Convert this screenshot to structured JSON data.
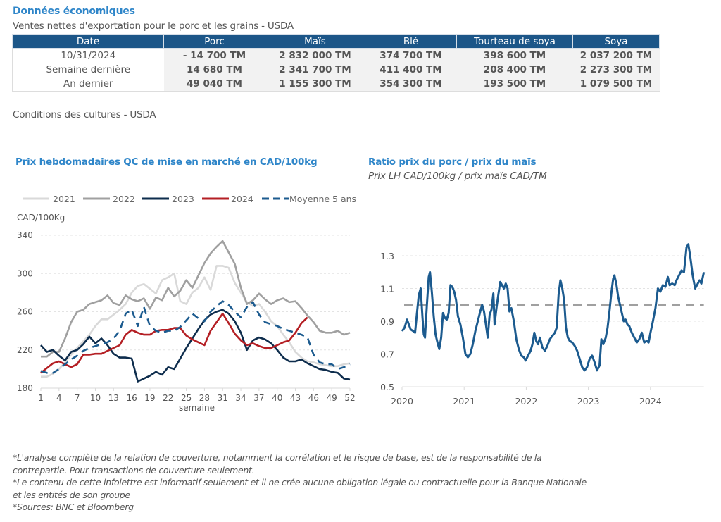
{
  "header": {
    "title": "Données économiques",
    "subtitle": "Ventes nettes d'exportation pour le porc et les grains - USDA"
  },
  "exports_table": {
    "columns": [
      "Date",
      "Porc",
      "Maïs",
      "Blé",
      "Tourteau de soya",
      "Soya"
    ],
    "rows": [
      [
        "10/31/2024",
        "- 14 700 TM",
        "2 832 000 TM",
        "374 700 TM",
        "398 600 TM",
        "2 037 200 TM"
      ],
      [
        "Semaine dernière",
        "14 680 TM",
        "2 341 700 TM",
        "411 400 TM",
        "208 400 TM",
        "2 273 300 TM"
      ],
      [
        "An dernier",
        "49 040 TM",
        "1 155 300 TM",
        "354 300 TM",
        "193 500 TM",
        "1 079 500 TM"
      ]
    ]
  },
  "crop_conditions": {
    "label": "Conditions des cultures - USDA"
  },
  "colors": {
    "title_blue": "#2f86c9",
    "header_navy": "#1c5688",
    "y2021": "#d9d9d9",
    "y2022": "#a0a0a0",
    "y2023": "#0e2d4d",
    "y2024": "#b41f24",
    "avg5": "#1c5b8f",
    "ratio_line": "#1c5b8f",
    "ratio_ref": "#a0a0a0"
  },
  "chart_data": [
    {
      "type": "line",
      "title": "Prix hebdomadaires QC de mise en marché en CAD/100kg",
      "ylabel": "CAD/100Kg",
      "xlabel": "semaine",
      "ylim": [
        180,
        340
      ],
      "yticks": [
        180,
        220,
        260,
        300,
        340
      ],
      "xlim": [
        1,
        52
      ],
      "xticks": [
        1,
        4,
        7,
        10,
        13,
        16,
        19,
        22,
        25,
        28,
        31,
        34,
        37,
        40,
        43,
        46,
        49,
        52
      ],
      "grid": "horizontal dashed",
      "legend": "top",
      "series": [
        {
          "name": "2021",
          "style": "solid",
          "color_key": "y2021",
          "values": [
            192,
            192,
            195,
            200,
            207,
            215,
            222,
            229,
            236,
            245,
            252,
            252,
            257,
            262,
            268,
            280,
            287,
            289,
            284,
            279,
            293,
            296,
            300,
            271,
            268,
            280,
            285,
            296,
            283,
            308,
            308,
            306,
            290,
            280,
            270,
            266,
            268,
            260,
            250,
            245,
            236,
            228,
            218,
            212,
            208,
            207,
            205,
            204,
            203,
            203,
            205,
            206
          ]
        },
        {
          "name": "2022",
          "style": "solid",
          "color_key": "y2022",
          "values": [
            213,
            213,
            218,
            218,
            232,
            249,
            260,
            262,
            268,
            270,
            272,
            277,
            269,
            267,
            277,
            273,
            271,
            274,
            263,
            275,
            272,
            285,
            276,
            282,
            293,
            285,
            298,
            311,
            321,
            328,
            334,
            322,
            310,
            285,
            268,
            272,
            279,
            273,
            268,
            272,
            274,
            270,
            271,
            264,
            256,
            249,
            240,
            238,
            238,
            240,
            236,
            238
          ]
        },
        {
          "name": "2023",
          "style": "solid",
          "color_key": "y2023",
          "values": [
            225,
            218,
            220,
            214,
            209,
            218,
            220,
            226,
            234,
            227,
            232,
            225,
            216,
            212,
            212,
            211,
            187,
            190,
            193,
            197,
            194,
            202,
            200,
            211,
            222,
            232,
            242,
            251,
            257,
            260,
            262,
            258,
            250,
            238,
            220,
            230,
            233,
            231,
            227,
            220,
            212,
            208,
            208,
            210,
            206,
            203,
            200,
            199,
            197,
            196,
            190,
            189
          ]
        },
        {
          "name": "2024",
          "style": "solid",
          "color_key": "y2024",
          "values": [
            196,
            201,
            206,
            208,
            205,
            202,
            205,
            215,
            215,
            216,
            216,
            219,
            222,
            225,
            236,
            241,
            238,
            236,
            236,
            240,
            241,
            241,
            243,
            243,
            235,
            231,
            228,
            225,
            240,
            249,
            258,
            248,
            237,
            230,
            225,
            227,
            224,
            222,
            222,
            225,
            228,
            230,
            238,
            248,
            254
          ]
        },
        {
          "name": "Moyenne 5 ans",
          "style": "dashed",
          "color_key": "avg5",
          "values": [
            198,
            196,
            196,
            200,
            205,
            210,
            214,
            219,
            222,
            224,
            226,
            228,
            232,
            240,
            258,
            262,
            245,
            265,
            245,
            240,
            238,
            240,
            240,
            244,
            251,
            258,
            253,
            250,
            260,
            266,
            271,
            267,
            260,
            254,
            265,
            270,
            257,
            249,
            247,
            245,
            242,
            240,
            238,
            236,
            233,
            215,
            207,
            205,
            205,
            200,
            202,
            205
          ]
        }
      ]
    },
    {
      "type": "line",
      "title": "Ratio prix du porc / prix du maïs",
      "subtitle": "Prix LH CAD/100kg / prix maïs CAD/TM",
      "ylim": [
        0.5,
        1.3
      ],
      "yticks": [
        0.5,
        0.7,
        0.9,
        1.1,
        1.3
      ],
      "xlim": [
        2020,
        2024.86
      ],
      "xticks": [
        2020,
        2021,
        2022,
        2023,
        2024
      ],
      "grid": "horizontal dashed",
      "reference_line": {
        "value": 1.0,
        "style": "dashed"
      },
      "series": [
        {
          "name": "Ratio porc/maïs",
          "points": [
            [
              2020.0,
              0.84
            ],
            [
              2020.04,
              0.86
            ],
            [
              2020.08,
              0.91
            ],
            [
              2020.11,
              0.88
            ],
            [
              2020.14,
              0.85
            ],
            [
              2020.18,
              0.84
            ],
            [
              2020.21,
              0.83
            ],
            [
              2020.24,
              0.95
            ],
            [
              2020.27,
              1.06
            ],
            [
              2020.3,
              1.1
            ],
            [
              2020.33,
              0.92
            ],
            [
              2020.35,
              0.82
            ],
            [
              2020.37,
              0.8
            ],
            [
              2020.4,
              1.0
            ],
            [
              2020.43,
              1.17
            ],
            [
              2020.45,
              1.2
            ],
            [
              2020.48,
              1.08
            ],
            [
              2020.51,
              0.93
            ],
            [
              2020.54,
              0.82
            ],
            [
              2020.57,
              0.77
            ],
            [
              2020.6,
              0.73
            ],
            [
              2020.63,
              0.8
            ],
            [
              2020.66,
              0.95
            ],
            [
              2020.69,
              0.92
            ],
            [
              2020.72,
              0.91
            ],
            [
              2020.75,
              0.95
            ],
            [
              2020.78,
              1.12
            ],
            [
              2020.81,
              1.11
            ],
            [
              2020.84,
              1.08
            ],
            [
              2020.87,
              1.03
            ],
            [
              2020.9,
              0.93
            ],
            [
              2020.94,
              0.88
            ],
            [
              2020.98,
              0.8
            ],
            [
              2021.02,
              0.7
            ],
            [
              2021.06,
              0.68
            ],
            [
              2021.1,
              0.7
            ],
            [
              2021.14,
              0.76
            ],
            [
              2021.18,
              0.84
            ],
            [
              2021.22,
              0.9
            ],
            [
              2021.26,
              0.96
            ],
            [
              2021.29,
              1.0
            ],
            [
              2021.32,
              0.96
            ],
            [
              2021.35,
              0.88
            ],
            [
              2021.38,
              0.8
            ],
            [
              2021.41,
              0.94
            ],
            [
              2021.44,
              0.97
            ],
            [
              2021.47,
              1.07
            ],
            [
              2021.49,
              0.88
            ],
            [
              2021.52,
              0.98
            ],
            [
              2021.55,
              1.06
            ],
            [
              2021.58,
              1.14
            ],
            [
              2021.61,
              1.12
            ],
            [
              2021.64,
              1.1
            ],
            [
              2021.67,
              1.13
            ],
            [
              2021.7,
              1.1
            ],
            [
              2021.73,
              0.96
            ],
            [
              2021.76,
              0.98
            ],
            [
              2021.8,
              0.9
            ],
            [
              2021.84,
              0.79
            ],
            [
              2021.88,
              0.73
            ],
            [
              2021.92,
              0.69
            ],
            [
              2021.96,
              0.68
            ],
            [
              2021.99,
              0.66
            ],
            [
              2022.03,
              0.69
            ],
            [
              2022.07,
              0.72
            ],
            [
              2022.1,
              0.76
            ],
            [
              2022.13,
              0.83
            ],
            [
              2022.16,
              0.78
            ],
            [
              2022.19,
              0.76
            ],
            [
              2022.22,
              0.8
            ],
            [
              2022.26,
              0.74
            ],
            [
              2022.3,
              0.72
            ],
            [
              2022.34,
              0.75
            ],
            [
              2022.38,
              0.79
            ],
            [
              2022.42,
              0.81
            ],
            [
              2022.46,
              0.83
            ],
            [
              2022.49,
              0.86
            ],
            [
              2022.52,
              1.06
            ],
            [
              2022.55,
              1.15
            ],
            [
              2022.58,
              1.1
            ],
            [
              2022.61,
              1.03
            ],
            [
              2022.64,
              0.86
            ],
            [
              2022.67,
              0.8
            ],
            [
              2022.7,
              0.78
            ],
            [
              2022.74,
              0.77
            ],
            [
              2022.78,
              0.75
            ],
            [
              2022.82,
              0.72
            ],
            [
              2022.86,
              0.67
            ],
            [
              2022.9,
              0.62
            ],
            [
              2022.94,
              0.6
            ],
            [
              2022.98,
              0.62
            ],
            [
              2023.02,
              0.67
            ],
            [
              2023.06,
              0.69
            ],
            [
              2023.1,
              0.65
            ],
            [
              2023.14,
              0.6
            ],
            [
              2023.18,
              0.63
            ],
            [
              2023.21,
              0.79
            ],
            [
              2023.24,
              0.76
            ],
            [
              2023.28,
              0.8
            ],
            [
              2023.31,
              0.86
            ],
            [
              2023.34,
              0.96
            ],
            [
              2023.37,
              1.07
            ],
            [
              2023.4,
              1.16
            ],
            [
              2023.42,
              1.18
            ],
            [
              2023.45,
              1.13
            ],
            [
              2023.48,
              1.05
            ],
            [
              2023.51,
              1.0
            ],
            [
              2023.54,
              0.95
            ],
            [
              2023.57,
              0.9
            ],
            [
              2023.6,
              0.91
            ],
            [
              2023.63,
              0.88
            ],
            [
              2023.66,
              0.87
            ],
            [
              2023.7,
              0.83
            ],
            [
              2023.74,
              0.8
            ],
            [
              2023.78,
              0.77
            ],
            [
              2023.82,
              0.79
            ],
            [
              2023.86,
              0.83
            ],
            [
              2023.9,
              0.77
            ],
            [
              2023.94,
              0.78
            ],
            [
              2023.97,
              0.77
            ],
            [
              2024.0,
              0.83
            ],
            [
              2024.04,
              0.9
            ],
            [
              2024.08,
              0.98
            ],
            [
              2024.12,
              1.1
            ],
            [
              2024.16,
              1.08
            ],
            [
              2024.2,
              1.12
            ],
            [
              2024.24,
              1.11
            ],
            [
              2024.28,
              1.17
            ],
            [
              2024.31,
              1.12
            ],
            [
              2024.35,
              1.13
            ],
            [
              2024.39,
              1.12
            ],
            [
              2024.42,
              1.15
            ],
            [
              2024.46,
              1.18
            ],
            [
              2024.5,
              1.21
            ],
            [
              2024.54,
              1.2
            ],
            [
              2024.58,
              1.35
            ],
            [
              2024.61,
              1.37
            ],
            [
              2024.64,
              1.3
            ],
            [
              2024.68,
              1.18
            ],
            [
              2024.72,
              1.1
            ],
            [
              2024.75,
              1.12
            ],
            [
              2024.79,
              1.15
            ],
            [
              2024.82,
              1.13
            ],
            [
              2024.86,
              1.2
            ]
          ]
        }
      ]
    }
  ],
  "footnotes": [
    "*L'analyse complète de la relation de couverture, notamment la corrélation et le risque de base, est de la responsabilité de la",
    "contrepartie. Pour transactions de couverture seulement.",
    "*Le contenu de cette infolettre est informatif seulement et il ne crée aucune obligation légale ou contractuelle pour la Banque Nationale",
    "et les entités de son groupe",
    "*Sources: BNC et Bloomberg"
  ]
}
